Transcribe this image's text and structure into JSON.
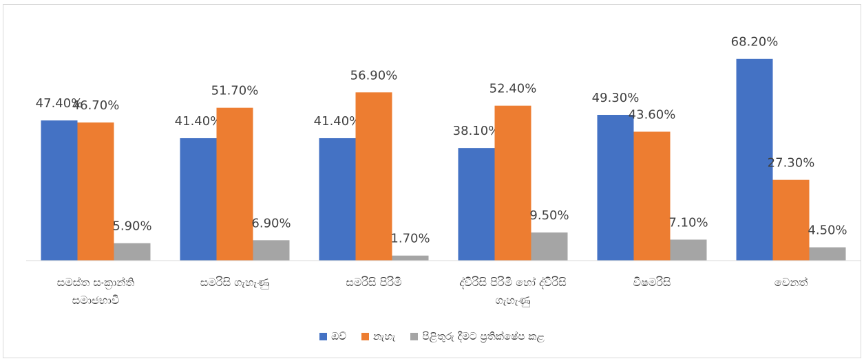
{
  "chart_data": {
    "type": "bar",
    "categories": [
      "සමස්ත සංක්‍රාන්ති සමාජභාවී",
      "සමරිසි ගැහැණු",
      "සමරිසි පිරිමි",
      "ද්විරිසි පිරිමි හෝ ද්විරිසි ගැහැණු",
      "විෂමරිසි",
      "වෙනත්"
    ],
    "series": [
      {
        "name": "ඔව්",
        "color": "#4472c4",
        "values": [
          47.4,
          41.4,
          41.4,
          38.1,
          49.3,
          68.2
        ],
        "value_labels": [
          "47.40%",
          "41.40%",
          "41.40%",
          "38.10%",
          "49.30%",
          "68.20%"
        ]
      },
      {
        "name": "නැහැ",
        "color": "#ed7d31",
        "values": [
          46.7,
          51.7,
          56.9,
          52.4,
          43.6,
          27.3
        ],
        "value_labels": [
          "46.70%",
          "51.70%",
          "56.90%",
          "52.40%",
          "43.60%",
          "27.30%"
        ]
      },
      {
        "name": "පිළිතුරු දීමට ප්‍රතික්ෂේප කළ",
        "color": "#a5a5a5",
        "values": [
          5.9,
          6.9,
          1.7,
          9.5,
          7.1,
          4.5
        ],
        "value_labels": [
          "5.90%",
          "6.90%",
          "1.70%",
          "9.50%",
          "7.10%",
          "4.50%"
        ]
      }
    ],
    "ylim": [
      0,
      80
    ],
    "legend": "bottom"
  }
}
